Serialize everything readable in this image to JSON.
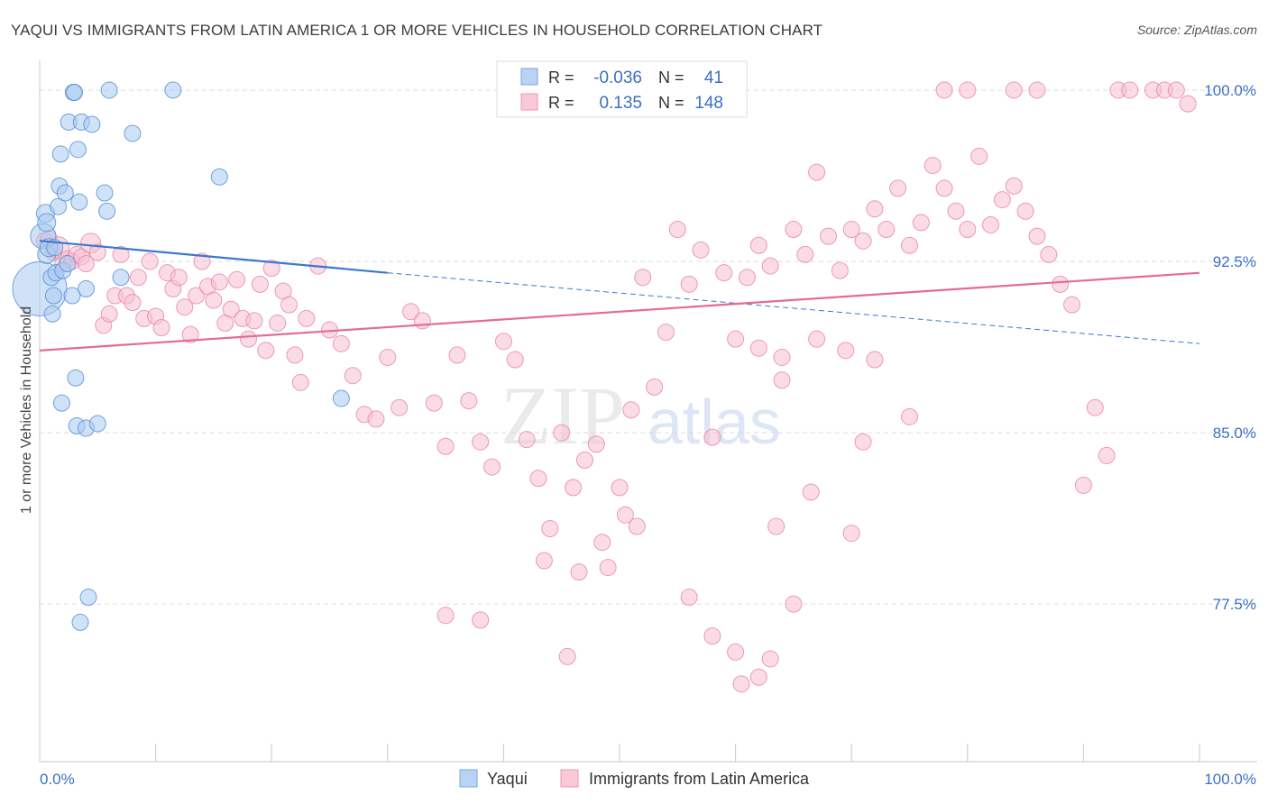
{
  "title": "YAQUI VS IMMIGRANTS FROM LATIN AMERICA 1 OR MORE VEHICLES IN HOUSEHOLD CORRELATION CHART",
  "source": "Source: ZipAtlas.com",
  "watermark": {
    "zip": "ZIP",
    "atlas": "atlas"
  },
  "legend_box": {
    "rows": [
      {
        "r_label": "R =",
        "r_value": "-0.036",
        "n_label": "N =",
        "n_value": "41",
        "color": "#9fc3ee"
      },
      {
        "r_label": "R =",
        "r_value": "0.135",
        "n_label": "N =",
        "n_value": "148",
        "color": "#f4aac0"
      }
    ]
  },
  "colors": {
    "yaqui_fill": "#aacbf2",
    "yaqui_stroke": "#5b92d6",
    "yaqui_line": "#3a78cf",
    "latin_fill": "#f7c0d1",
    "latin_stroke": "#e98aa9",
    "latin_line": "#e46b95",
    "value_text": "#3c6fc4",
    "grid": "#dedede"
  },
  "chart_data": {
    "type": "scatter",
    "title": "YAQUI VS IMMIGRANTS FROM LATIN AMERICA 1 OR MORE VEHICLES IN HOUSEHOLD CORRELATION CHART",
    "xlabel": "",
    "ylabel": "1 or more Vehicles in Household",
    "xlim": [
      0,
      100
    ],
    "ylim": [
      70.6,
      101.3
    ],
    "x_tick_labels": [
      "0.0%",
      "100.0%"
    ],
    "y_ticks": [
      77.5,
      85.0,
      92.5,
      100.0
    ],
    "y_tick_labels": [
      "77.5%",
      "85.0%",
      "92.5%",
      "100.0%"
    ],
    "grid": true,
    "legend": [
      "Yaqui",
      "Immigrants from Latin America"
    ],
    "series": [
      {
        "name": "Yaqui",
        "trend": {
          "x": [
            0,
            30,
            100
          ],
          "y": [
            93.4,
            92.0,
            88.9
          ],
          "solid_until": 30
        },
        "points": [
          [
            0.0,
            91.3
          ],
          [
            0.3,
            93.6
          ],
          [
            0.5,
            94.6
          ],
          [
            0.6,
            94.2
          ],
          [
            0.6,
            92.8
          ],
          [
            0.8,
            93.1
          ],
          [
            1.0,
            91.8
          ],
          [
            1.1,
            90.2
          ],
          [
            1.2,
            91.0
          ],
          [
            1.4,
            92.0
          ],
          [
            1.6,
            94.9
          ],
          [
            1.7,
            95.8
          ],
          [
            1.8,
            97.2
          ],
          [
            1.9,
            86.3
          ],
          [
            2.0,
            92.1
          ],
          [
            2.2,
            95.5
          ],
          [
            2.4,
            92.4
          ],
          [
            2.5,
            98.6
          ],
          [
            2.9,
            99.9
          ],
          [
            3.0,
            99.9
          ],
          [
            3.1,
            87.4
          ],
          [
            3.2,
            85.3
          ],
          [
            3.3,
            97.4
          ],
          [
            3.4,
            95.1
          ],
          [
            3.6,
            98.6
          ],
          [
            4.0,
            85.2
          ],
          [
            4.0,
            91.3
          ],
          [
            4.2,
            77.8
          ],
          [
            4.5,
            98.5
          ],
          [
            5.0,
            85.4
          ],
          [
            5.6,
            95.5
          ],
          [
            5.8,
            94.7
          ],
          [
            6.0,
            100.0
          ],
          [
            7.0,
            91.8
          ],
          [
            8.0,
            98.1
          ],
          [
            11.5,
            100.0
          ],
          [
            15.5,
            96.2
          ],
          [
            26.0,
            86.5
          ],
          [
            3.5,
            76.7
          ],
          [
            2.8,
            91.0
          ],
          [
            1.3,
            93.1
          ]
        ],
        "sizes": [
          30,
          14,
          10,
          10,
          10,
          10,
          9,
          9,
          9,
          9,
          9,
          9,
          9,
          9,
          9,
          9,
          9,
          9,
          9,
          9,
          9,
          9,
          9,
          9,
          9,
          9,
          9,
          9,
          9,
          9,
          9,
          9,
          9,
          9,
          9,
          9,
          9,
          9,
          9,
          9,
          9
        ]
      },
      {
        "name": "Immigrants from Latin America",
        "trend": {
          "x": [
            0,
            100
          ],
          "y": [
            88.6,
            92.0
          ]
        },
        "points": [
          [
            0.4,
            93.4
          ],
          [
            0.8,
            93.5
          ],
          [
            1.2,
            92.9
          ],
          [
            1.6,
            93.1
          ],
          [
            2.0,
            92.4
          ],
          [
            2.4,
            92.6
          ],
          [
            2.8,
            92.5
          ],
          [
            3.2,
            92.8
          ],
          [
            3.6,
            92.7
          ],
          [
            4.0,
            92.4
          ],
          [
            4.4,
            93.3
          ],
          [
            5.0,
            92.9
          ],
          [
            5.5,
            89.7
          ],
          [
            6.0,
            90.2
          ],
          [
            6.5,
            91.0
          ],
          [
            7.0,
            92.8
          ],
          [
            7.5,
            91.0
          ],
          [
            8.0,
            90.7
          ],
          [
            8.5,
            91.8
          ],
          [
            9.0,
            90.0
          ],
          [
            9.5,
            92.5
          ],
          [
            10.0,
            90.1
          ],
          [
            10.5,
            89.6
          ],
          [
            11.0,
            92.0
          ],
          [
            11.5,
            91.3
          ],
          [
            12.0,
            91.8
          ],
          [
            12.5,
            90.5
          ],
          [
            13.0,
            89.3
          ],
          [
            13.5,
            91.0
          ],
          [
            14.0,
            92.5
          ],
          [
            14.5,
            91.4
          ],
          [
            15.0,
            90.8
          ],
          [
            15.5,
            91.6
          ],
          [
            16.0,
            89.8
          ],
          [
            16.5,
            90.4
          ],
          [
            17.0,
            91.7
          ],
          [
            17.5,
            90.0
          ],
          [
            18.0,
            89.1
          ],
          [
            18.5,
            89.9
          ],
          [
            19.0,
            91.5
          ],
          [
            19.5,
            88.6
          ],
          [
            20.0,
            92.2
          ],
          [
            20.5,
            89.8
          ],
          [
            21.0,
            91.2
          ],
          [
            21.5,
            90.6
          ],
          [
            22.0,
            88.4
          ],
          [
            22.5,
            87.2
          ],
          [
            23.0,
            90.0
          ],
          [
            24.0,
            92.3
          ],
          [
            25.0,
            89.5
          ],
          [
            26.0,
            88.9
          ],
          [
            27.0,
            87.5
          ],
          [
            28.0,
            85.8
          ],
          [
            29.0,
            85.6
          ],
          [
            30.0,
            88.3
          ],
          [
            31.0,
            86.1
          ],
          [
            32.0,
            90.3
          ],
          [
            33.0,
            89.9
          ],
          [
            34.0,
            86.3
          ],
          [
            35.0,
            84.4
          ],
          [
            36.0,
            88.4
          ],
          [
            37.0,
            86.4
          ],
          [
            38.0,
            84.6
          ],
          [
            39.0,
            83.5
          ],
          [
            40.0,
            89.0
          ],
          [
            41.0,
            88.2
          ],
          [
            42.0,
            84.7
          ],
          [
            43.0,
            83.0
          ],
          [
            44.0,
            80.8
          ],
          [
            45.0,
            85.0
          ],
          [
            46.0,
            82.6
          ],
          [
            47.0,
            83.8
          ],
          [
            48.0,
            84.5
          ],
          [
            49.0,
            79.1
          ],
          [
            50.0,
            82.6
          ],
          [
            51.0,
            86.0
          ],
          [
            52.0,
            91.8
          ],
          [
            53.0,
            87.0
          ],
          [
            54.0,
            89.4
          ],
          [
            55.0,
            93.9
          ],
          [
            56.0,
            91.5
          ],
          [
            57.0,
            93.0
          ],
          [
            58.0,
            84.8
          ],
          [
            59.0,
            92.0
          ],
          [
            60.0,
            89.1
          ],
          [
            61.0,
            91.8
          ],
          [
            62.0,
            93.2
          ],
          [
            63.0,
            92.3
          ],
          [
            64.0,
            88.3
          ],
          [
            65.0,
            93.9
          ],
          [
            66.0,
            92.8
          ],
          [
            67.0,
            96.4
          ],
          [
            68.0,
            93.6
          ],
          [
            69.0,
            92.1
          ],
          [
            70.0,
            93.9
          ],
          [
            71.0,
            93.4
          ],
          [
            72.0,
            94.8
          ],
          [
            73.0,
            93.9
          ],
          [
            74.0,
            95.7
          ],
          [
            75.0,
            93.2
          ],
          [
            76.0,
            94.2
          ],
          [
            77.0,
            96.7
          ],
          [
            78.0,
            95.7
          ],
          [
            79.0,
            94.7
          ],
          [
            80.0,
            93.9
          ],
          [
            81.0,
            97.1
          ],
          [
            82.0,
            94.1
          ],
          [
            83.0,
            95.2
          ],
          [
            84.0,
            95.8
          ],
          [
            85.0,
            94.7
          ],
          [
            86.0,
            93.6
          ],
          [
            87.0,
            92.8
          ],
          [
            88.0,
            91.5
          ],
          [
            89.0,
            90.6
          ],
          [
            90.0,
            82.7
          ],
          [
            91.0,
            86.1
          ],
          [
            92.0,
            84.0
          ],
          [
            93.0,
            100.0
          ],
          [
            94.0,
            100.0
          ],
          [
            96.0,
            100.0
          ],
          [
            97.0,
            100.0
          ],
          [
            98.0,
            100.0
          ],
          [
            99.0,
            99.4
          ],
          [
            84.0,
            100.0
          ],
          [
            86.0,
            100.0
          ],
          [
            80.0,
            100.0
          ],
          [
            78.0,
            100.0
          ],
          [
            69.5,
            88.6
          ],
          [
            63.5,
            80.9
          ],
          [
            65.0,
            77.5
          ],
          [
            58.0,
            76.1
          ],
          [
            60.0,
            75.4
          ],
          [
            62.0,
            74.3
          ],
          [
            63.0,
            75.1
          ],
          [
            56.0,
            77.8
          ],
          [
            50.5,
            81.4
          ],
          [
            45.5,
            75.2
          ],
          [
            43.5,
            79.4
          ],
          [
            38.0,
            76.8
          ],
          [
            35.0,
            77.0
          ],
          [
            46.5,
            78.9
          ],
          [
            48.5,
            80.2
          ],
          [
            51.5,
            80.9
          ],
          [
            64.0,
            87.3
          ],
          [
            62.0,
            88.7
          ],
          [
            66.5,
            82.4
          ],
          [
            70.0,
            80.6
          ],
          [
            75.0,
            85.7
          ],
          [
            67.0,
            89.1
          ],
          [
            71.0,
            84.6
          ],
          [
            72.0,
            88.2
          ],
          [
            60.5,
            74.0
          ]
        ],
        "sizes": [
          9,
          9,
          9,
          12,
          9,
          9,
          9,
          9,
          9,
          9,
          11,
          9,
          9,
          9,
          9,
          9,
          9,
          9,
          9,
          9,
          9,
          9,
          9,
          9,
          9,
          9,
          9,
          9,
          9,
          9,
          9,
          9,
          9,
          9,
          9,
          9,
          9,
          9,
          9,
          9,
          9,
          9,
          9,
          9,
          9,
          9,
          9,
          9,
          9,
          9,
          9,
          9,
          9,
          9,
          9,
          9,
          9,
          9,
          9,
          9,
          9,
          9,
          9,
          9,
          9,
          9,
          9,
          9,
          9,
          9,
          9,
          9,
          9,
          9,
          9,
          9,
          9,
          9,
          9,
          9,
          9,
          9,
          9,
          9,
          9,
          9,
          9,
          9,
          9,
          9,
          9,
          9,
          9,
          9,
          9,
          9,
          9,
          9,
          9,
          9,
          9,
          9,
          9,
          9,
          9,
          9,
          9,
          9,
          9,
          9,
          9,
          9,
          9,
          9,
          9,
          9,
          9,
          9,
          9,
          9,
          9,
          9,
          9,
          9,
          9,
          9,
          9,
          9,
          9,
          9,
          9,
          9,
          9,
          9,
          9,
          9,
          9,
          9,
          9,
          9,
          9,
          9,
          9,
          9,
          9,
          9,
          9,
          9
        ]
      }
    ]
  }
}
